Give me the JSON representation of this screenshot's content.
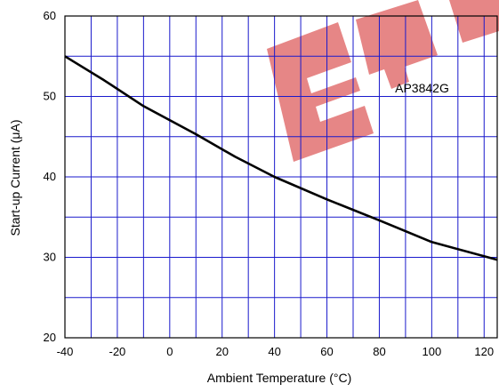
{
  "chart_data": {
    "type": "line",
    "title": "",
    "xlabel": "Ambient Temperature (°C)",
    "ylabel": "Start-up Current (μA)",
    "xlim": [
      -40,
      125
    ],
    "ylim": [
      20,
      60
    ],
    "x_major_ticks": [
      -40,
      -20,
      0,
      20,
      40,
      60,
      80,
      100,
      120
    ],
    "y_major_ticks": [
      20,
      30,
      40,
      50,
      60
    ],
    "x_gridlines": [
      -40,
      -30,
      -20,
      -10,
      0,
      10,
      20,
      30,
      40,
      50,
      60,
      70,
      80,
      90,
      100,
      110,
      120
    ],
    "y_gridlines": [
      20,
      25,
      30,
      35,
      40,
      45,
      50,
      55,
      60
    ],
    "grid": true,
    "series": [
      {
        "name": "AP3842G",
        "x": [
          -40,
          -25,
          -10,
          10,
          25,
          40,
          60,
          80,
          100,
          125
        ],
        "y": [
          55,
          52,
          48.8,
          45.3,
          42.5,
          40,
          37.2,
          34.6,
          31.9,
          29.7
        ]
      }
    ],
    "annotations": [
      {
        "text": "AP3842G",
        "x": 86,
        "y": 50.5
      }
    ]
  },
  "colors": {
    "grid": "#1a1acc",
    "line": "#000000",
    "watermark": "#e87878"
  }
}
